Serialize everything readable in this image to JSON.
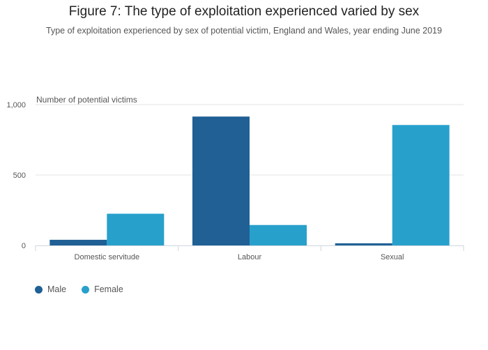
{
  "title": "Figure 7: The type of exploitation experienced varied by sex",
  "subtitle": "Type of exploitation experienced by sex of potential victim, England and Wales, year ending June 2019",
  "colors": {
    "male": "#206095",
    "female": "#27a0cc",
    "grid": "#e6e6e6",
    "axis": "#cfd6e0",
    "tick_text": "#555555"
  },
  "chart_data": {
    "type": "bar",
    "title": "Figure 7: The type of exploitation experienced varied by sex",
    "ylabel": "Number of potential victims",
    "xlabel": "",
    "categories": [
      "Domestic servitude",
      "Labour",
      "Sexual"
    ],
    "series": [
      {
        "name": "Male",
        "values": [
          40,
          915,
          15
        ]
      },
      {
        "name": "Female",
        "values": [
          225,
          145,
          855
        ]
      }
    ],
    "ylim": [
      0,
      1000
    ],
    "yticks": [
      0,
      500,
      1000
    ],
    "ytick_labels": [
      "0",
      "500",
      "1,000"
    ],
    "grid": true,
    "legend": "bottom-left"
  }
}
